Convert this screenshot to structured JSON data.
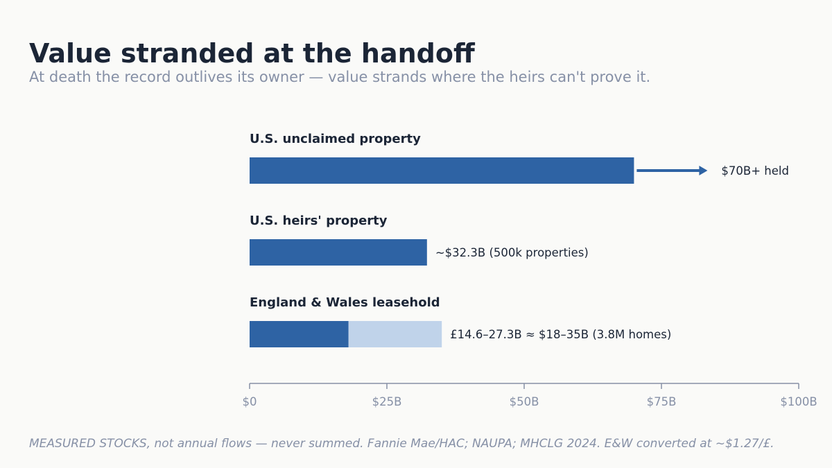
{
  "header": {
    "title": "Value stranded at the handoff",
    "subtitle": "At death the record outlives its owner — value strands where the heirs can't prove it."
  },
  "footnote": "MEASURED STOCKS, not annual flows — never summed. Fannie Mae/HAC; NAUPA; MHCLG 2024. E&W converted at ~$1.27/£.",
  "colors": {
    "bar": "#2e63a4",
    "bar_range": "#c0d3ea",
    "axis": "#8690a6"
  },
  "chart_data": {
    "type": "bar",
    "orientation": "horizontal",
    "xlim": [
      0,
      100
    ],
    "grid": false,
    "ticks": [
      {
        "value": 0,
        "label": "$0"
      },
      {
        "value": 25,
        "label": "$25B"
      },
      {
        "value": 50,
        "label": "$50B"
      },
      {
        "value": 75,
        "label": "$75B"
      },
      {
        "value": 100,
        "label": "$100B"
      }
    ],
    "bars": [
      {
        "category": "U.S. unclaimed property",
        "value": 70,
        "open_ended": true,
        "label": "$70B+ held"
      },
      {
        "category": "U.S. heirs' property",
        "value": 32.3,
        "label": "~$32.3B  (500k properties)"
      },
      {
        "category": "England & Wales leasehold",
        "value": 18,
        "range_high": 35,
        "label": "£14.6–27.3B ≈ $18–35B  (3.8M homes)"
      }
    ]
  }
}
